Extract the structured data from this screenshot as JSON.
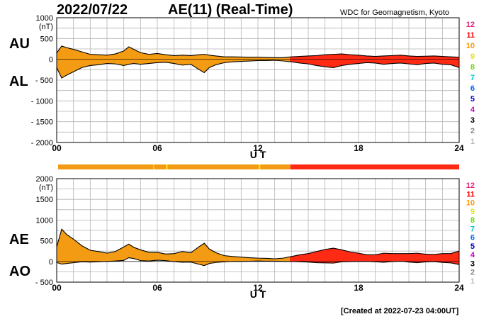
{
  "header": {
    "date": "2022/07/22",
    "title": "AE(11) (Real-Time)",
    "source": "WDC for Geomagnetism, Kyoto"
  },
  "footer": "[Created at 2022-07-23 04:00UT]",
  "colors": {
    "grid": "#b4b4b4",
    "station_count_fill_low": "#f39b12",
    "station_count_fill_high": "#ff2a14",
    "station_count_bar_highlight": "#ffe11a"
  },
  "legend": {
    "station_counts": [
      {
        "label": "12",
        "color": "#e8237a"
      },
      {
        "label": "11",
        "color": "#ff0000"
      },
      {
        "label": "10",
        "color": "#ff9900"
      },
      {
        "label": "9",
        "color": "#e6e600"
      },
      {
        "label": "8",
        "color": "#66dd00"
      },
      {
        "label": "7",
        "color": "#00cccc"
      },
      {
        "label": "6",
        "color": "#0066ff"
      },
      {
        "label": "5",
        "color": "#0000cc"
      },
      {
        "label": "4",
        "color": "#cc00cc"
      },
      {
        "label": "3",
        "color": "#000000"
      },
      {
        "label": "2",
        "color": "#888888"
      },
      {
        "label": "1",
        "color": "#bbbbbb"
      }
    ]
  },
  "chart_data": [
    {
      "type": "area",
      "xlabel": "U T",
      "ylabel": "(nT)",
      "side_labels": [
        "AU",
        "AL"
      ],
      "xlim": [
        0,
        24
      ],
      "ylim": [
        -2000,
        1000
      ],
      "x_ticks": [
        0,
        6,
        12,
        18,
        24
      ],
      "x_tick_labels": [
        "00",
        "06",
        "12",
        "18",
        "24"
      ],
      "y_ticks": [
        1000,
        500,
        0,
        -500,
        -1000,
        -1500,
        -2000
      ],
      "y_tick_labels": [
        "1000",
        "500",
        "0",
        "- 500",
        "- 1000",
        "- 1500",
        "- 2000"
      ],
      "grid": true,
      "x": [
        0,
        0.3,
        0.6,
        1,
        1.5,
        2,
        2.5,
        3,
        3.5,
        4,
        4.3,
        4.6,
        5,
        5.5,
        6,
        6.5,
        7,
        7.5,
        8,
        8.5,
        8.8,
        9.1,
        9.5,
        10,
        10.5,
        11,
        11.5,
        12,
        12.5,
        13,
        13.5,
        14,
        14.5,
        15,
        15.5,
        16,
        16.5,
        17,
        17.5,
        18,
        18.5,
        19,
        19.5,
        20,
        20.5,
        21,
        21.5,
        22,
        22.5,
        23,
        23.5,
        24
      ],
      "series": [
        {
          "name": "AU",
          "values": [
            150,
            320,
            280,
            240,
            180,
            120,
            110,
            100,
            130,
            200,
            300,
            240,
            160,
            120,
            140,
            110,
            90,
            100,
            90,
            110,
            120,
            100,
            80,
            60,
            60,
            55,
            50,
            50,
            45,
            40,
            40,
            60,
            70,
            80,
            90,
            110,
            120,
            130,
            110,
            100,
            80,
            70,
            80,
            90,
            100,
            80,
            70,
            75,
            80,
            70,
            60,
            50
          ]
        },
        {
          "name": "AL",
          "values": [
            -200,
            -450,
            -380,
            -300,
            -200,
            -150,
            -130,
            -100,
            -110,
            -150,
            -120,
            -100,
            -120,
            -100,
            -80,
            -70,
            -100,
            -140,
            -120,
            -250,
            -320,
            -200,
            -130,
            -80,
            -60,
            -50,
            -40,
            -30,
            -30,
            -25,
            -40,
            -60,
            -90,
            -110,
            -150,
            -180,
            -200,
            -150,
            -120,
            -100,
            -80,
            -90,
            -120,
            -100,
            -90,
            -110,
            -130,
            -100,
            -90,
            -120,
            -130,
            -200
          ]
        }
      ],
      "station_count_change_ut": 13.9,
      "station_counts": [
        10,
        11
      ]
    },
    {
      "type": "area",
      "xlabel": "U T",
      "ylabel": "(nT)",
      "side_labels": [
        "AE",
        "AO"
      ],
      "xlim": [
        0,
        24
      ],
      "ylim": [
        -500,
        2000
      ],
      "x_ticks": [
        0,
        6,
        12,
        18,
        24
      ],
      "x_tick_labels": [
        "00",
        "06",
        "12",
        "18",
        "24"
      ],
      "y_ticks": [
        2000,
        1500,
        1000,
        500,
        0,
        -500
      ],
      "y_tick_labels": [
        "2000",
        "1500",
        "1000",
        "500",
        "0",
        "- 500"
      ],
      "grid": true,
      "x": [
        0,
        0.3,
        0.6,
        1,
        1.5,
        2,
        2.5,
        3,
        3.5,
        4,
        4.3,
        4.6,
        5,
        5.5,
        6,
        6.5,
        7,
        7.5,
        8,
        8.5,
        8.8,
        9.1,
        9.5,
        10,
        10.5,
        11,
        11.5,
        12,
        12.5,
        13,
        13.5,
        14,
        14.5,
        15,
        15.5,
        16,
        16.5,
        17,
        17.5,
        18,
        18.5,
        19,
        19.5,
        20,
        20.5,
        21,
        21.5,
        22,
        22.5,
        23,
        23.5,
        24
      ],
      "series": [
        {
          "name": "AE",
          "values": [
            350,
            780,
            650,
            540,
            380,
            270,
            240,
            200,
            240,
            350,
            420,
            340,
            280,
            220,
            220,
            180,
            190,
            240,
            210,
            360,
            440,
            300,
            210,
            140,
            120,
            105,
            90,
            80,
            75,
            65,
            80,
            120,
            160,
            190,
            240,
            290,
            320,
            280,
            230,
            200,
            160,
            160,
            200,
            190,
            190,
            190,
            200,
            175,
            170,
            190,
            190,
            250
          ]
        },
        {
          "name": "AO",
          "values": [
            -25,
            -65,
            -50,
            -30,
            -10,
            -15,
            -10,
            0,
            10,
            25,
            90,
            70,
            20,
            10,
            30,
            20,
            -5,
            -20,
            -15,
            -70,
            -100,
            -50,
            -25,
            -10,
            0,
            2,
            5,
            10,
            7,
            7,
            0,
            0,
            -10,
            -15,
            -30,
            -35,
            -40,
            -10,
            -5,
            0,
            0,
            -10,
            -20,
            -5,
            5,
            -15,
            -30,
            -12,
            -5,
            -25,
            -35,
            -75
          ]
        }
      ],
      "station_count_change_ut": 13.9,
      "station_counts": [
        10,
        11
      ]
    }
  ]
}
